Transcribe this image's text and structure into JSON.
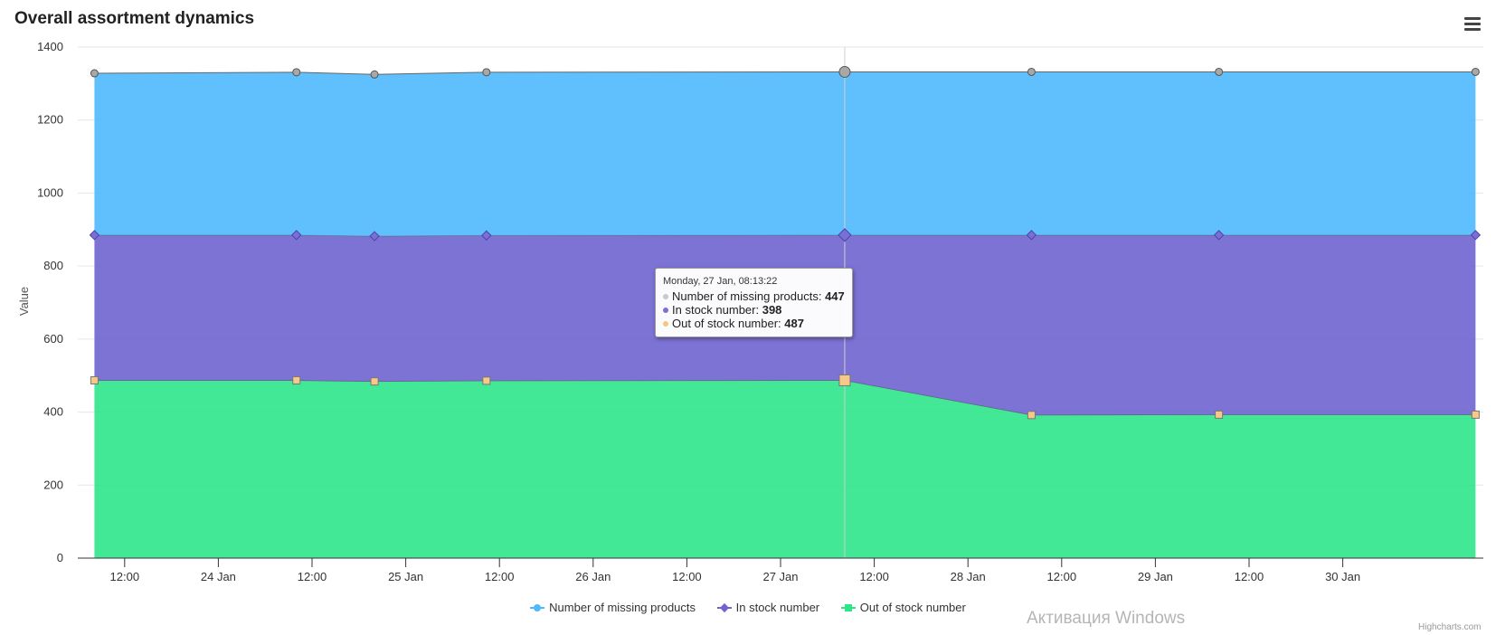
{
  "title": "Overall assortment dynamics",
  "menu_icon": "hamburger-menu-icon",
  "watermark": "Активация Windows",
  "credits": "Highcharts.com",
  "tooltip": {
    "date": "Monday, 27 Jan, 08:13:22",
    "rows": [
      {
        "label": "Number of missing products: ",
        "value": "447",
        "color": "#c8c8c8"
      },
      {
        "label": "In stock number: ",
        "value": "398",
        "color": "#7b6fd6"
      },
      {
        "label": "Out of stock number: ",
        "value": "487",
        "color": "#f5c77e"
      }
    ]
  },
  "chart_data": {
    "type": "area",
    "stacking": "normal",
    "title": "Overall assortment dynamics",
    "ylabel": "Value",
    "ylim": [
      0,
      1400
    ],
    "yticks": [
      0,
      200,
      400,
      600,
      800,
      1000,
      1200,
      1400
    ],
    "x_range": [
      "2025-01-23T06:00",
      "2025-01-30T18:00"
    ],
    "x_ticks": [
      {
        "t": "2025-01-23T12:00",
        "label": "12:00"
      },
      {
        "t": "2025-01-24T00:00",
        "label": "24 Jan"
      },
      {
        "t": "2025-01-24T12:00",
        "label": "12:00"
      },
      {
        "t": "2025-01-25T00:00",
        "label": "25 Jan"
      },
      {
        "t": "2025-01-25T12:00",
        "label": "12:00"
      },
      {
        "t": "2025-01-26T00:00",
        "label": "26 Jan"
      },
      {
        "t": "2025-01-26T12:00",
        "label": "12:00"
      },
      {
        "t": "2025-01-27T00:00",
        "label": "27 Jan"
      },
      {
        "t": "2025-01-27T12:00",
        "label": "12:00"
      },
      {
        "t": "2025-01-28T00:00",
        "label": "28 Jan"
      },
      {
        "t": "2025-01-28T12:00",
        "label": "12:00"
      },
      {
        "t": "2025-01-29T00:00",
        "label": "29 Jan"
      },
      {
        "t": "2025-01-29T12:00",
        "label": "12:00"
      },
      {
        "t": "2025-01-30T00:00",
        "label": "30 Jan"
      }
    ],
    "x": [
      "2025-01-23T08:08",
      "2025-01-24T10:00",
      "2025-01-24T20:00",
      "2025-01-25T10:20",
      "2025-01-27T08:13",
      "2025-01-28T08:08",
      "2025-01-29T08:08",
      "2025-01-30T17:00"
    ],
    "active_index": 4,
    "series": [
      {
        "name": "Number of missing products",
        "color": "#4fb9fd",
        "marker": "circle",
        "values": [
          443,
          446,
          443,
          447,
          447,
          447,
          447,
          447
        ]
      },
      {
        "name": "In stock number",
        "color": "#6e64cf",
        "marker": "diamond",
        "values": [
          398,
          398,
          398,
          398,
          398,
          493,
          492,
          492
        ]
      },
      {
        "name": "Out of stock number",
        "color": "#2ee68a",
        "marker": "square",
        "values": [
          487,
          487,
          484,
          486,
          487,
          392,
          393,
          393
        ]
      }
    ],
    "legend_position": "bottom-center",
    "grid": true
  }
}
